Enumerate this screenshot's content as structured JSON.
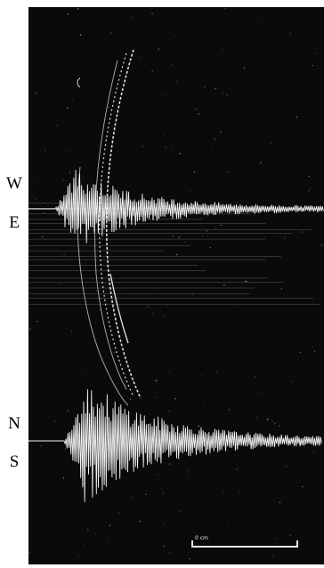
{
  "channels": {
    "upper": {
      "top_label": "W",
      "bottom_label": "E"
    },
    "lower": {
      "top_label": "N",
      "bottom_label": "S"
    }
  },
  "scale_bar": {
    "label": "0 cm"
  },
  "colors": {
    "background": "#0a0a0a",
    "trace": "#f2f2f2",
    "page": "#ffffff"
  }
}
